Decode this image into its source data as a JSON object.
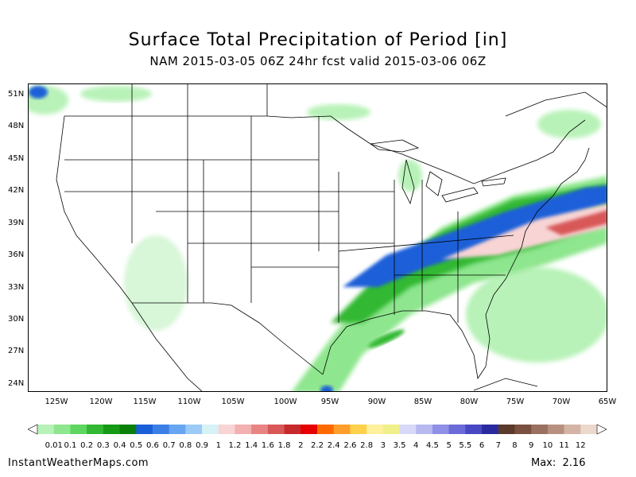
{
  "title": "Surface Total Precipitation of Period [in]",
  "subtitle": "NAM 2015-03-05 06Z 24hr fcst valid 2015-03-06 06Z",
  "latitude_labels": [
    "51N",
    "48N",
    "45N",
    "42N",
    "39N",
    "36N",
    "33N",
    "30N",
    "27N",
    "24N"
  ],
  "longitude_labels": [
    "125W",
    "120W",
    "115W",
    "110W",
    "105W",
    "100W",
    "95W",
    "90W",
    "85W",
    "80W",
    "75W",
    "70W",
    "65W"
  ],
  "legend": {
    "labels": [
      "0.01",
      "0.1",
      "0.2",
      "0.3",
      "0.4",
      "0.5",
      "0.6",
      "0.7",
      "0.8",
      "0.9",
      "1",
      "1.2",
      "1.4",
      "1.6",
      "1.8",
      "2",
      "2.2",
      "2.4",
      "2.6",
      "2.8",
      "3",
      "3.5",
      "4",
      "4.5",
      "5",
      "5.5",
      "6",
      "7",
      "8",
      "9",
      "10",
      "11",
      "12"
    ],
    "colors": [
      "#b8f2b8",
      "#8ee68e",
      "#5fd65f",
      "#32b832",
      "#169a16",
      "#0a7f0a",
      "#1a5fd8",
      "#3b7fe6",
      "#66a6f0",
      "#9ccaf6",
      "#d6f2f7",
      "#f8d4d4",
      "#f2b0b0",
      "#e88484",
      "#d85858",
      "#c62a2a",
      "#e60000",
      "#ff6a00",
      "#ff9e2c",
      "#ffd04a",
      "#fff09c",
      "#f0f08a",
      "#d8d8f8",
      "#b8b8f0",
      "#8f8fe6",
      "#6a6ad8",
      "#4848c2",
      "#2a2a9e",
      "#5a3a2a",
      "#7a5040",
      "#9a7060",
      "#b89080",
      "#d4b4a4",
      "#ecd8cc"
    ]
  },
  "footer": {
    "site": "InstantWeatherMaps.com",
    "max_label": "Max:  2.16"
  }
}
